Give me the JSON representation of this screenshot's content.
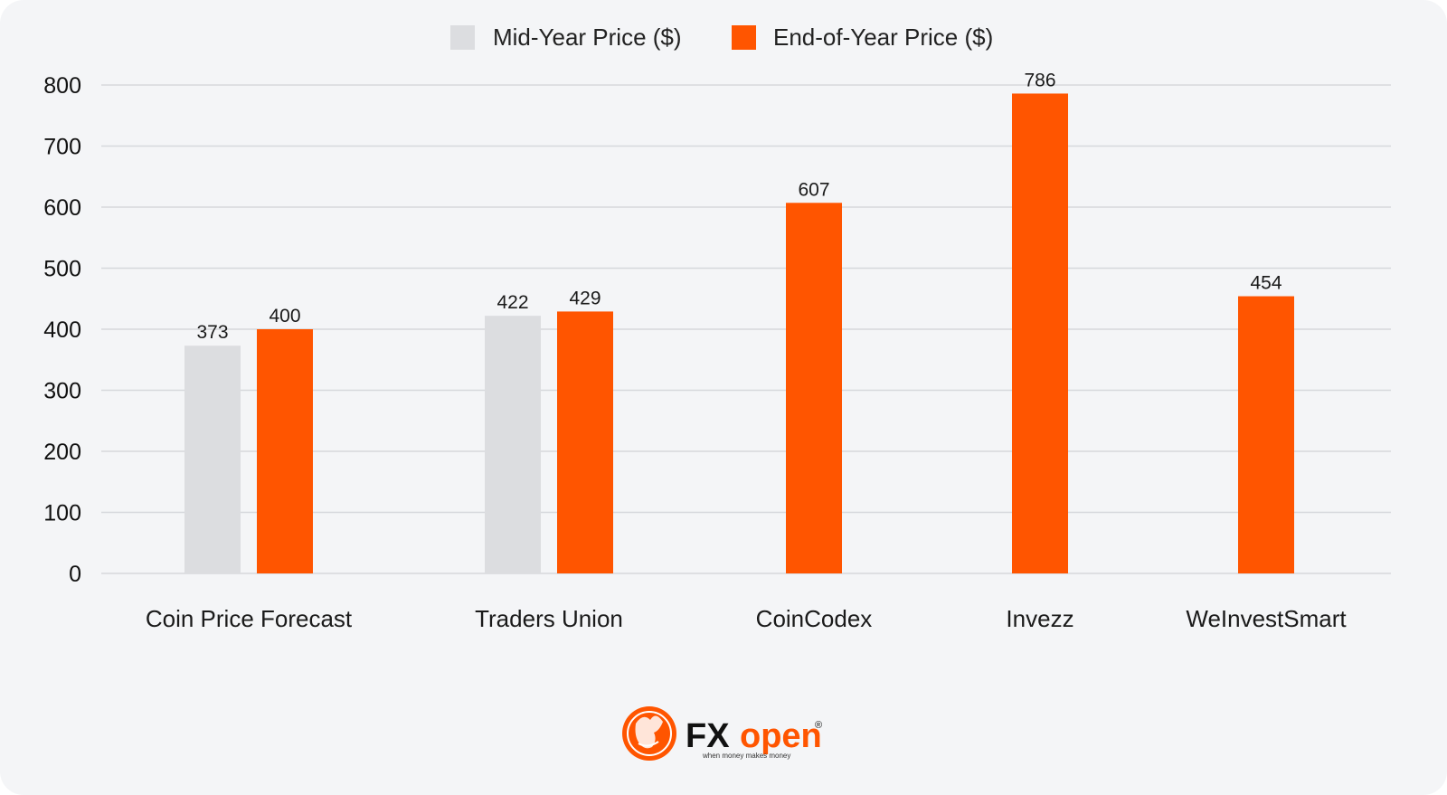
{
  "colors": {
    "background": "#f4f5f7",
    "grid": "#d6d8dc",
    "mid_year": "#dcdde0",
    "end_of_year": "#ff5500",
    "text": "#1a1a1a"
  },
  "chart_data": {
    "type": "bar",
    "title": "",
    "xlabel": "",
    "ylabel": "",
    "ylim": [
      0,
      800
    ],
    "yticks": [
      0,
      100,
      200,
      300,
      400,
      500,
      600,
      700,
      800
    ],
    "grid": true,
    "legend_position": "top-center",
    "categories": [
      "Coin Price Forecast",
      "Traders Union",
      "CoinCodex",
      "Invezz",
      "WeInvestSmart"
    ],
    "series": [
      {
        "name": "Mid-Year Price ($)",
        "color": "#dcdde0",
        "values": [
          373,
          422,
          null,
          null,
          null
        ]
      },
      {
        "name": "End-of-Year Price ($)",
        "color": "#ff5500",
        "values": [
          400,
          429,
          607,
          786,
          454
        ]
      }
    ]
  },
  "logo": {
    "brand": "FXopen",
    "brand_fx": "FX",
    "brand_open": "open",
    "tagline": "when money makes money",
    "registered": "®",
    "icon": "bull-emblem-icon"
  }
}
